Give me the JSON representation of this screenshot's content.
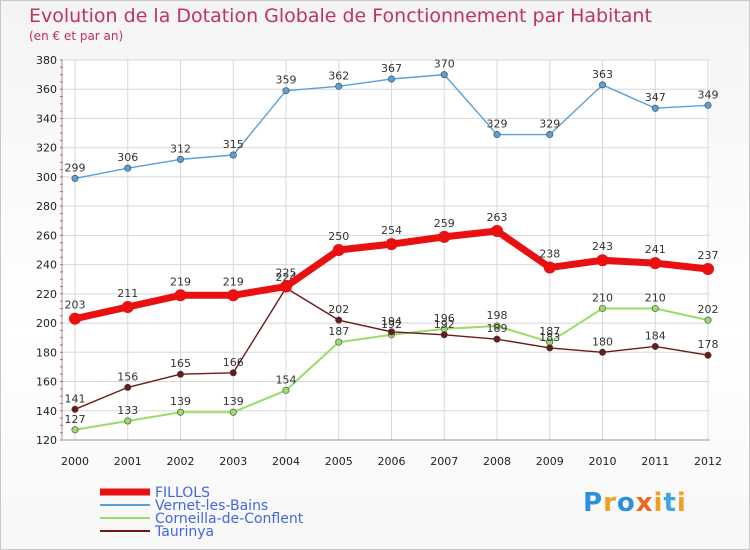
{
  "title": "Evolution de la Dotation Globale de Fonctionnement par Habitant",
  "subtitle": "(en € et par an)",
  "logo_text": "Proxiti",
  "chart_data": {
    "type": "line",
    "title": "Evolution de la Dotation Globale de Fonctionnement par Habitant",
    "subtitle": "(en € et par an)",
    "x": [
      "2000",
      "2001",
      "2002",
      "2003",
      "2004",
      "2005",
      "2006",
      "2007",
      "2008",
      "2009",
      "2010",
      "2011",
      "2012"
    ],
    "ylim": [
      120,
      380
    ],
    "yticks": [
      120,
      140,
      160,
      180,
      200,
      220,
      240,
      260,
      280,
      300,
      320,
      340,
      360,
      380
    ],
    "grid": true,
    "legend_position": "bottom-left",
    "series": [
      {
        "name": "FILLOLS",
        "color": "#e81010",
        "values": [
          203,
          211,
          219,
          219,
          225,
          250,
          254,
          259,
          263,
          238,
          243,
          241,
          237
        ]
      },
      {
        "name": "Vernet-les-Bains",
        "color": "#5aa0d8",
        "values": [
          299,
          306,
          312,
          315,
          359,
          362,
          367,
          370,
          329,
          329,
          363,
          347,
          349
        ]
      },
      {
        "name": "Corneilla-de-Conflent",
        "color": "#99dd66",
        "values": [
          127,
          133,
          139,
          139,
          154,
          187,
          192,
          196,
          198,
          187,
          210,
          210,
          202
        ]
      },
      {
        "name": "Taurinya",
        "color": "#6b1a1a",
        "values": [
          141,
          156,
          165,
          166,
          224,
          202,
          194,
          192,
          189,
          183,
          180,
          184,
          178
        ]
      }
    ]
  }
}
